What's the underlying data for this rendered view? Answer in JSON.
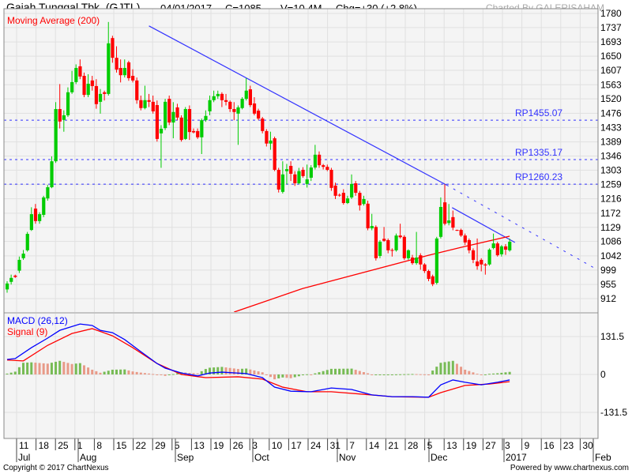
{
  "header": {
    "title": "Gajah Tunggal Tbk. (GJTL)",
    "date": "04/01/2017",
    "close": "C=1085",
    "volume": "V=10.4M",
    "change": "Chg=+30 (+2.8%)",
    "credit": "Charted By GALERISAHAM"
  },
  "footer": {
    "copyright": "Copyright © 2017 ChartNexus",
    "powered": "Powered by www.chartnexus.com"
  },
  "colors": {
    "up": "#00cc00",
    "down": "#ff0000",
    "ma": "#ff0000",
    "trendline": "#3333ff",
    "macd": "#0000ff",
    "signal": "#ff0000",
    "hist_up": "#77bb55",
    "hist_down": "#e89a88",
    "plot_bg": "#f4f4f4",
    "grid": "#e0e0e0"
  },
  "chart_data": [
    {
      "type": "candlestick",
      "legend": "Moving Average (200)",
      "y_ticks": [
        "1780",
        "1737",
        "1693",
        "1650",
        "1607",
        "1563",
        "1520",
        "1476",
        "1433",
        "1389",
        "1346",
        "1303",
        "1259",
        "1216",
        "1172",
        "1129",
        "1086",
        "1042",
        "999",
        "955",
        "912"
      ],
      "ylim": [
        912,
        1780
      ],
      "x_ticks": [
        "11",
        "18",
        "25",
        "1",
        "8",
        "15",
        "22",
        "29",
        "5",
        "13",
        "19",
        "26",
        "3",
        "10",
        "17",
        "24",
        "31",
        "7",
        "14",
        "21",
        "28",
        "5",
        "13",
        "19",
        "27",
        "3",
        "9",
        "16",
        "23",
        "30"
      ],
      "x_months": [
        "Jul",
        "Aug",
        "Sep",
        "Oct",
        "Nov",
        "Dec",
        "2017",
        "Feb"
      ],
      "grid": true,
      "ohlc": [
        [
          940,
          965,
          930,
          958
        ],
        [
          963,
          985,
          955,
          975
        ],
        [
          982,
          985,
          975,
          978
        ],
        [
          997,
          1040,
          990,
          1030
        ],
        [
          1035,
          1060,
          1030,
          1049
        ],
        [
          1059,
          1115,
          1055,
          1109
        ],
        [
          1121,
          1190,
          1118,
          1169
        ],
        [
          1186,
          1200,
          1140,
          1148
        ],
        [
          1148,
          1175,
          1140,
          1169
        ],
        [
          1167,
          1225,
          1160,
          1220
        ],
        [
          1217,
          1258,
          1210,
          1251
        ],
        [
          1251,
          1345,
          1248,
          1330
        ],
        [
          1330,
          1510,
          1325,
          1489
        ],
        [
          1489,
          1565,
          1430,
          1451
        ],
        [
          1456,
          1485,
          1420,
          1470
        ],
        [
          1470,
          1555,
          1465,
          1540
        ],
        [
          1540,
          1605,
          1535,
          1571
        ],
        [
          1571,
          1625,
          1565,
          1614
        ],
        [
          1619,
          1640,
          1580,
          1588
        ],
        [
          1590,
          1600,
          1525,
          1532
        ],
        [
          1532,
          1595,
          1525,
          1566
        ],
        [
          1576,
          1590,
          1545,
          1559
        ],
        [
          1559,
          1580,
          1490,
          1504
        ],
        [
          1511,
          1550,
          1475,
          1535
        ],
        [
          1540,
          1545,
          1515,
          1535
        ],
        [
          1535,
          1754,
          1530,
          1689
        ],
        [
          1705,
          1712,
          1630,
          1645
        ],
        [
          1645,
          1680,
          1600,
          1609
        ],
        [
          1614,
          1640,
          1570,
          1592
        ],
        [
          1592,
          1640,
          1585,
          1614
        ],
        [
          1631,
          1636,
          1575,
          1583
        ],
        [
          1590,
          1610,
          1570,
          1576
        ],
        [
          1576,
          1585,
          1505,
          1516
        ],
        [
          1516,
          1530,
          1485,
          1492
        ],
        [
          1492,
          1560,
          1488,
          1516
        ],
        [
          1516,
          1535,
          1495,
          1511
        ],
        [
          1511,
          1530,
          1475,
          1482
        ],
        [
          1501,
          1515,
          1390,
          1398
        ],
        [
          1415,
          1440,
          1310,
          1429
        ],
        [
          1431,
          1520,
          1425,
          1511
        ],
        [
          1520,
          1530,
          1440,
          1448
        ],
        [
          1448,
          1510,
          1400,
          1480
        ],
        [
          1494,
          1505,
          1455,
          1463
        ],
        [
          1463,
          1470,
          1390,
          1395
        ],
        [
          1398,
          1495,
          1395,
          1489
        ],
        [
          1489,
          1500,
          1395,
          1419
        ],
        [
          1422,
          1430,
          1415,
          1418
        ],
        [
          1422,
          1430,
          1398,
          1403
        ],
        [
          1403,
          1460,
          1352,
          1455
        ],
        [
          1455,
          1485,
          1450,
          1468
        ],
        [
          1482,
          1530,
          1470,
          1516
        ],
        [
          1516,
          1545,
          1510,
          1528
        ],
        [
          1528,
          1545,
          1520,
          1535
        ],
        [
          1535,
          1540,
          1495,
          1516
        ],
        [
          1516,
          1535,
          1500,
          1511
        ],
        [
          1511,
          1515,
          1480,
          1489
        ],
        [
          1489,
          1510,
          1455,
          1480
        ],
        [
          1475,
          1500,
          1380,
          1494
        ],
        [
          1492,
          1525,
          1488,
          1520
        ],
        [
          1520,
          1583,
          1515,
          1545
        ],
        [
          1549,
          1560,
          1495,
          1501
        ],
        [
          1506,
          1525,
          1470,
          1475
        ],
        [
          1484,
          1490,
          1455,
          1460
        ],
        [
          1460,
          1465,
          1415,
          1422
        ],
        [
          1422,
          1428,
          1375,
          1384
        ],
        [
          1384,
          1420,
          1365,
          1393
        ],
        [
          1400,
          1405,
          1300,
          1304
        ],
        [
          1304,
          1310,
          1235,
          1244
        ],
        [
          1237,
          1330,
          1232,
          1290
        ],
        [
          1300,
          1322,
          1260,
          1306
        ],
        [
          1316,
          1330,
          1270,
          1292
        ],
        [
          1290,
          1300,
          1255,
          1263
        ],
        [
          1263,
          1310,
          1260,
          1300
        ],
        [
          1304,
          1312,
          1280,
          1285
        ],
        [
          1261,
          1320,
          1250,
          1275
        ],
        [
          1280,
          1318,
          1270,
          1311
        ],
        [
          1311,
          1380,
          1305,
          1350
        ],
        [
          1350,
          1360,
          1310,
          1318
        ],
        [
          1318,
          1322,
          1305,
          1313
        ],
        [
          1313,
          1320,
          1300,
          1304
        ],
        [
          1304,
          1310,
          1240,
          1249
        ],
        [
          1256,
          1265,
          1215,
          1225
        ],
        [
          1228,
          1232,
          1222,
          1226
        ],
        [
          1234,
          1245,
          1198,
          1203
        ],
        [
          1203,
          1225,
          1200,
          1217
        ],
        [
          1220,
          1290,
          1215,
          1261
        ],
        [
          1263,
          1270,
          1225,
          1234
        ],
        [
          1234,
          1240,
          1180,
          1196
        ],
        [
          1200,
          1225,
          1195,
          1215
        ],
        [
          1201,
          1210,
          1120,
          1126
        ],
        [
          1126,
          1170,
          1120,
          1133
        ],
        [
          1130,
          1135,
          1028,
          1035
        ],
        [
          1042,
          1090,
          1035,
          1085
        ],
        [
          1094,
          1130,
          1085,
          1088
        ],
        [
          1090,
          1095,
          1050,
          1059
        ],
        [
          1060,
          1065,
          1040,
          1058
        ],
        [
          1059,
          1110,
          1055,
          1104
        ],
        [
          1104,
          1140,
          1095,
          1099
        ],
        [
          1100,
          1105,
          1030,
          1035
        ],
        [
          1035,
          1062,
          1030,
          1059
        ],
        [
          1037,
          1045,
          1015,
          1020
        ],
        [
          1020,
          1115,
          1015,
          1037
        ],
        [
          1044,
          1050,
          1000,
          1016
        ],
        [
          1016,
          1020,
          990,
          996
        ],
        [
          996,
          1000,
          965,
          972
        ],
        [
          980,
          985,
          950,
          956
        ],
        [
          960,
          1100,
          955,
          1095
        ],
        [
          1100,
          1220,
          1095,
          1191
        ],
        [
          1205,
          1260,
          1135,
          1140
        ],
        [
          1142,
          1200,
          1135,
          1150
        ],
        [
          1160,
          1180,
          1120,
          1128
        ],
        [
          1121,
          1122,
          1118,
          1120
        ],
        [
          1121,
          1125,
          1100,
          1104
        ],
        [
          1104,
          1110,
          1075,
          1083
        ],
        [
          1090,
          1095,
          1050,
          1059
        ],
        [
          1059,
          1065,
          1020,
          1030
        ],
        [
          1025,
          1095,
          1000,
          1011
        ],
        [
          1030,
          1035,
          995,
          1016
        ],
        [
          1016,
          1020,
          985,
          1013
        ],
        [
          1016,
          1065,
          1012,
          1061
        ],
        [
          1066,
          1110,
          1062,
          1080
        ],
        [
          1080,
          1085,
          1040,
          1044
        ],
        [
          1047,
          1075,
          1040,
          1071
        ],
        [
          1071,
          1078,
          1045,
          1061
        ],
        [
          1059,
          1095,
          1055,
          1085
        ]
      ],
      "moving_average_200": [
        [
          56,
          871
        ],
        [
          73,
          943
        ],
        [
          104,
          1044
        ],
        [
          112,
          1068
        ],
        [
          124,
          1102
        ]
      ],
      "support_resistance": [
        {
          "label": "RP1455.07",
          "value": 1455.07
        },
        {
          "label": "RP1335.17",
          "value": 1335.17
        },
        {
          "label": "RP1260.23",
          "value": 1260.23
        }
      ],
      "trendlines": [
        {
          "from": [
            35,
            1742
          ],
          "to": [
            108.4,
            1258
          ],
          "extend_to": [
            145.8,
            999
          ]
        },
        {
          "from": [
            109.8,
            1189
          ],
          "to": [
            125.3,
            1083
          ]
        }
      ]
    },
    {
      "type": "line",
      "series": [
        {
          "name": "MACD (26,12)",
          "points": [
            [
              0,
              52
            ],
            [
              2,
              55
            ],
            [
              6,
              93
            ],
            [
              10,
              126
            ],
            [
              13,
              153
            ],
            [
              18,
              175
            ],
            [
              21,
              170
            ],
            [
              23,
              153
            ],
            [
              26,
              145
            ],
            [
              29,
              121
            ],
            [
              33,
              79
            ],
            [
              37,
              38
            ],
            [
              39,
              22
            ],
            [
              43,
              5
            ],
            [
              47,
              -5
            ],
            [
              50,
              5
            ],
            [
              53,
              8
            ],
            [
              59,
              3
            ],
            [
              63,
              -11
            ],
            [
              66,
              -44
            ],
            [
              70,
              -58
            ],
            [
              75,
              -60
            ],
            [
              80,
              -47
            ],
            [
              85,
              -52
            ],
            [
              90,
              -71
            ],
            [
              95,
              -77
            ],
            [
              100,
              -77
            ],
            [
              104,
              -79
            ],
            [
              107,
              -36
            ],
            [
              110,
              -19
            ],
            [
              113,
              -27
            ],
            [
              117,
              -36
            ],
            [
              121,
              -27
            ],
            [
              124,
              -19
            ]
          ]
        },
        {
          "name": "Signal (9)",
          "points": [
            [
              0,
              50
            ],
            [
              4,
              47
            ],
            [
              10,
              101
            ],
            [
              16,
              142
            ],
            [
              21,
              159
            ],
            [
              26,
              134
            ],
            [
              31,
              93
            ],
            [
              37,
              38
            ],
            [
              43,
              0
            ],
            [
              49,
              -11
            ],
            [
              57,
              -8
            ],
            [
              63,
              -16
            ],
            [
              68,
              -44
            ],
            [
              74,
              -60
            ],
            [
              80,
              -60
            ],
            [
              90,
              -71
            ],
            [
              95,
              -77
            ],
            [
              104,
              -79
            ],
            [
              107,
              -63
            ],
            [
              113,
              -38
            ],
            [
              119,
              -33
            ],
            [
              124,
              -25
            ]
          ]
        }
      ],
      "y_ticks": [
        "131.5",
        "0",
        "-131.5"
      ],
      "ylim": [
        -131.5,
        131.5
      ],
      "histogram": "MACD - Signal"
    }
  ]
}
